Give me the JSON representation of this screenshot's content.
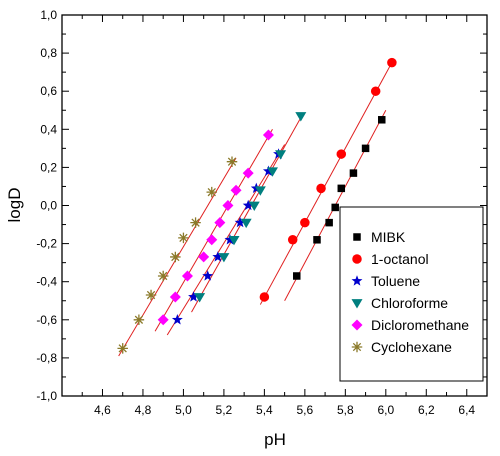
{
  "chart_data": {
    "type": "scatter",
    "title": "",
    "xlabel": "pH",
    "ylabel": "logD",
    "xlim": [
      4.4,
      6.5
    ],
    "ylim": [
      -1.0,
      1.0
    ],
    "x_ticks": [
      "4,6",
      "4,8",
      "5,0",
      "5,2",
      "5,4",
      "5,6",
      "5,8",
      "6,0",
      "6,2",
      "6,4"
    ],
    "y_ticks": [
      "-1,0",
      "-0,8",
      "-0,6",
      "-0,4",
      "-0,2",
      "0,0",
      "0,2",
      "0,4",
      "0,6",
      "0,8",
      "1,0"
    ],
    "grid": false,
    "legend_position": "bottom-right",
    "series": [
      {
        "name": "MIBK",
        "marker": "square",
        "color": "#000000",
        "points": [
          [
            5.56,
            -0.37
          ],
          [
            5.66,
            -0.18
          ],
          [
            5.72,
            -0.09
          ],
          [
            5.75,
            -0.01
          ],
          [
            5.78,
            0.09
          ],
          [
            5.84,
            0.17
          ],
          [
            5.9,
            0.3
          ],
          [
            5.98,
            0.45
          ]
        ],
        "fit": [
          [
            5.5,
            -0.5
          ],
          [
            6.0,
            0.5
          ]
        ]
      },
      {
        "name": "1-octanol",
        "marker": "circle",
        "color": "#ff0000",
        "points": [
          [
            5.4,
            -0.48
          ],
          [
            5.54,
            -0.18
          ],
          [
            5.6,
            -0.09
          ],
          [
            5.68,
            0.09
          ],
          [
            5.78,
            0.27
          ],
          [
            5.95,
            0.6
          ],
          [
            6.03,
            0.75
          ]
        ],
        "fit": [
          [
            5.38,
            -0.52
          ],
          [
            6.04,
            0.77
          ]
        ]
      },
      {
        "name": "Toluene",
        "marker": "star",
        "color": "#0000cc",
        "points": [
          [
            4.97,
            -0.6
          ],
          [
            5.05,
            -0.48
          ],
          [
            5.12,
            -0.37
          ],
          [
            5.17,
            -0.27
          ],
          [
            5.23,
            -0.18
          ],
          [
            5.28,
            -0.09
          ],
          [
            5.32,
            0.0
          ],
          [
            5.36,
            0.09
          ],
          [
            5.42,
            0.18
          ],
          [
            5.47,
            0.27
          ]
        ],
        "fit": [
          [
            4.92,
            -0.68
          ],
          [
            5.5,
            0.32
          ]
        ]
      },
      {
        "name": "Chloroforme",
        "marker": "triangle-down",
        "color": "#007f7f",
        "points": [
          [
            5.08,
            -0.48
          ],
          [
            5.2,
            -0.27
          ],
          [
            5.25,
            -0.18
          ],
          [
            5.31,
            -0.09
          ],
          [
            5.35,
            0.0
          ],
          [
            5.38,
            0.08
          ],
          [
            5.44,
            0.18
          ],
          [
            5.48,
            0.27
          ],
          [
            5.58,
            0.47
          ]
        ],
        "fit": [
          [
            5.04,
            -0.56
          ],
          [
            5.59,
            0.48
          ]
        ]
      },
      {
        "name": "Dicloromethane",
        "marker": "diamond",
        "color": "#ff00ff",
        "points": [
          [
            4.9,
            -0.6
          ],
          [
            4.96,
            -0.48
          ],
          [
            5.02,
            -0.37
          ],
          [
            5.1,
            -0.27
          ],
          [
            5.14,
            -0.18
          ],
          [
            5.18,
            -0.09
          ],
          [
            5.22,
            0.0
          ],
          [
            5.26,
            0.08
          ],
          [
            5.32,
            0.17
          ],
          [
            5.42,
            0.37
          ]
        ],
        "fit": [
          [
            4.86,
            -0.66
          ],
          [
            5.44,
            0.4
          ]
        ]
      },
      {
        "name": "Cyclohexane",
        "marker": "asterisk",
        "color": "#8b7a2a",
        "points": [
          [
            4.7,
            -0.75
          ],
          [
            4.78,
            -0.6
          ],
          [
            4.84,
            -0.47
          ],
          [
            4.9,
            -0.37
          ],
          [
            4.96,
            -0.27
          ],
          [
            5.0,
            -0.17
          ],
          [
            5.06,
            -0.09
          ],
          [
            5.14,
            0.07
          ],
          [
            5.24,
            0.23
          ]
        ],
        "fit": [
          [
            4.68,
            -0.79
          ],
          [
            5.26,
            0.25
          ]
        ]
      }
    ]
  }
}
